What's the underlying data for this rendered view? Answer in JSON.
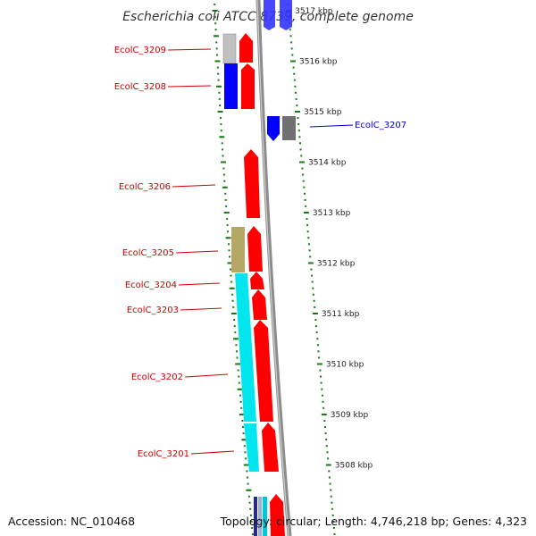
{
  "title": "Escherichia coli ATCC 8739, complete genome",
  "footer": {
    "accession": "Accession: NC_010468",
    "topology": "Topology: circular; Length: 4,746,218 bp; Genes: 4,323"
  },
  "colors": {
    "forward_cds": "#ff0000",
    "reverse_cds": "#0000ff",
    "label_forward": "#cc0000",
    "label_reverse": "#0000cc",
    "backbone": "#8c8c8c",
    "tick": "#1a7a1a",
    "cyan_feature": "#00e5ee",
    "olive_feature": "#b5a866",
    "grey_feature": "#a0a0a0"
  },
  "ticks": [
    {
      "kbp": 3517,
      "label": "3517 kbp"
    },
    {
      "kbp": 3516,
      "label": "3516 kbp"
    },
    {
      "kbp": 3515,
      "label": "3515 kbp"
    },
    {
      "kbp": 3514,
      "label": "3514 kbp"
    },
    {
      "kbp": 3513,
      "label": "3513 kbp"
    },
    {
      "kbp": 3512,
      "label": "3512 kbp"
    },
    {
      "kbp": 3511,
      "label": "3511 kbp"
    },
    {
      "kbp": 3510,
      "label": "3510 kbp"
    },
    {
      "kbp": 3509,
      "label": "3509 kbp"
    },
    {
      "kbp": 3508,
      "label": "3508 kbp"
    }
  ],
  "genes": [
    {
      "label": "EcolC_3209",
      "strand": "forward"
    },
    {
      "label": "EcolC_3208",
      "strand": "forward"
    },
    {
      "label": "EcolC_3207",
      "strand": "reverse"
    },
    {
      "label": "EcolC_3206",
      "strand": "forward"
    },
    {
      "label": "EcolC_3205",
      "strand": "forward"
    },
    {
      "label": "EcolC_3204",
      "strand": "forward"
    },
    {
      "label": "EcolC_3203",
      "strand": "forward"
    },
    {
      "label": "EcolC_3202",
      "strand": "forward"
    },
    {
      "label": "EcolC_3201",
      "strand": "forward"
    }
  ]
}
